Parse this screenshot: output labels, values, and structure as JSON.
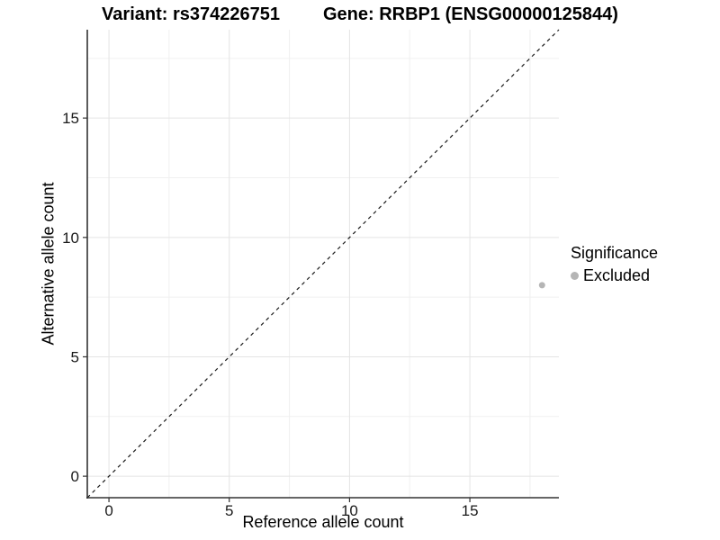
{
  "header": {
    "variant_title": "Variant: rs374226751",
    "gene_title": "Gene: RRBP1 (ENSG00000125844)"
  },
  "chart_data": {
    "type": "scatter",
    "xlabel": "Reference allele count",
    "ylabel": "Alternative allele count",
    "xlim": [
      -0.9,
      18.7
    ],
    "ylim": [
      -0.9,
      18.7
    ],
    "x_ticks": [
      0,
      5,
      10,
      15
    ],
    "y_ticks": [
      0,
      5,
      10,
      15
    ],
    "minor_gridlines": [
      2.5,
      7.5,
      12.5,
      17.5
    ],
    "grid": true,
    "points": [
      {
        "x": 18,
        "y": 8,
        "series": "Excluded"
      }
    ],
    "reference_line": {
      "equation": "y = x",
      "style": "dashed",
      "color": "#1a1a1a"
    },
    "legend": {
      "title": "Significance",
      "position": "right",
      "items": [
        {
          "label": "Excluded",
          "color": "#b5b5b5"
        }
      ]
    },
    "colors": {
      "point": "#b5b5b5",
      "grid_major": "#e4e4e4",
      "grid_minor": "#f0f0f0",
      "axis_line": "#333333",
      "tick_label": "#1a1a1a",
      "background": "#ffffff"
    }
  }
}
